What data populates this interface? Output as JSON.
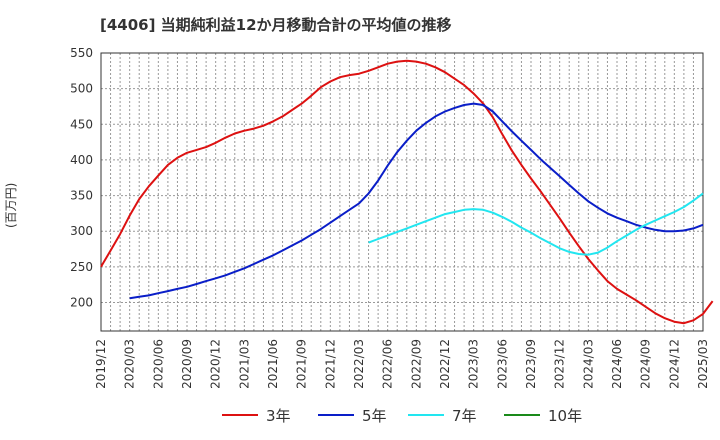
{
  "chart_data": {
    "type": "line",
    "title": "[4406]  当期純利益12か月移動合計の平均値の推移",
    "ylabel": "(百万円)",
    "xlabel": "",
    "ylim": [
      160,
      550
    ],
    "yticks": [
      200,
      250,
      300,
      350,
      400,
      450,
      500,
      550
    ],
    "xrange": [
      "2019-12",
      "2025-03"
    ],
    "xticks": [
      "2019/12",
      "2020/03",
      "2020/06",
      "2020/09",
      "2020/12",
      "2021/03",
      "2021/06",
      "2021/09",
      "2021/12",
      "2022/03",
      "2022/06",
      "2022/09",
      "2022/12",
      "2023/03",
      "2023/06",
      "2023/09",
      "2023/12",
      "2024/03",
      "2024/06",
      "2024/09",
      "2024/12",
      "2025/03"
    ],
    "grid": true,
    "legend_position": "bottom",
    "series": [
      {
        "name": "3年",
        "color": "#dd1111",
        "points": [
          [
            "2019-12",
            250
          ],
          [
            "2020-01",
            273
          ],
          [
            "2020-02",
            296
          ],
          [
            "2020-03",
            322
          ],
          [
            "2020-04",
            345
          ],
          [
            "2020-05",
            363
          ],
          [
            "2020-06",
            378
          ],
          [
            "2020-07",
            393
          ],
          [
            "2020-08",
            403
          ],
          [
            "2020-09",
            410
          ],
          [
            "2020-10",
            414
          ],
          [
            "2020-11",
            418
          ],
          [
            "2020-12",
            424
          ],
          [
            "2021-01",
            431
          ],
          [
            "2021-02",
            437
          ],
          [
            "2021-03",
            441
          ],
          [
            "2021-04",
            444
          ],
          [
            "2021-05",
            448
          ],
          [
            "2021-06",
            454
          ],
          [
            "2021-07",
            461
          ],
          [
            "2021-08",
            470
          ],
          [
            "2021-09",
            479
          ],
          [
            "2021-10",
            490
          ],
          [
            "2021-11",
            502
          ],
          [
            "2021-12",
            510
          ],
          [
            "2022-01",
            516
          ],
          [
            "2022-02",
            519
          ],
          [
            "2022-03",
            521
          ],
          [
            "2022-04",
            525
          ],
          [
            "2022-05",
            530
          ],
          [
            "2022-06",
            535
          ],
          [
            "2022-07",
            538
          ],
          [
            "2022-08",
            539
          ],
          [
            "2022-09",
            538
          ],
          [
            "2022-10",
            535
          ],
          [
            "2022-11",
            530
          ],
          [
            "2022-12",
            523
          ],
          [
            "2023-01",
            514
          ],
          [
            "2023-02",
            505
          ],
          [
            "2023-03",
            493
          ],
          [
            "2023-04",
            479
          ],
          [
            "2023-05",
            460
          ],
          [
            "2023-06",
            436
          ],
          [
            "2023-07",
            413
          ],
          [
            "2023-08",
            393
          ],
          [
            "2023-09",
            374
          ],
          [
            "2023-10",
            356
          ],
          [
            "2023-11",
            337
          ],
          [
            "2023-12",
            318
          ],
          [
            "2024-01",
            298
          ],
          [
            "2024-02",
            279
          ],
          [
            "2024-03",
            261
          ],
          [
            "2024-04",
            245
          ],
          [
            "2024-05",
            230
          ],
          [
            "2024-06",
            219
          ],
          [
            "2024-07",
            211
          ],
          [
            "2024-08",
            203
          ],
          [
            "2024-09",
            194
          ],
          [
            "2024-10",
            185
          ],
          [
            "2024-11",
            178
          ],
          [
            "2024-12",
            173
          ],
          [
            "2025-01",
            171
          ],
          [
            "2025-02",
            175
          ],
          [
            "2025-03",
            184
          ],
          [
            "2025-04",
            202
          ]
        ]
      },
      {
        "name": "5年",
        "color": "#0a1ec8",
        "points": [
          [
            "2020-03",
            206
          ],
          [
            "2020-04",
            208
          ],
          [
            "2020-05",
            210
          ],
          [
            "2020-06",
            213
          ],
          [
            "2020-07",
            216
          ],
          [
            "2020-08",
            219
          ],
          [
            "2020-09",
            222
          ],
          [
            "2020-10",
            226
          ],
          [
            "2020-11",
            230
          ],
          [
            "2020-12",
            234
          ],
          [
            "2021-01",
            238
          ],
          [
            "2021-02",
            243
          ],
          [
            "2021-03",
            248
          ],
          [
            "2021-04",
            254
          ],
          [
            "2021-05",
            260
          ],
          [
            "2021-06",
            266
          ],
          [
            "2021-07",
            273
          ],
          [
            "2021-08",
            280
          ],
          [
            "2021-09",
            287
          ],
          [
            "2021-10",
            295
          ],
          [
            "2021-11",
            303
          ],
          [
            "2021-12",
            312
          ],
          [
            "2022-01",
            321
          ],
          [
            "2022-02",
            330
          ],
          [
            "2022-03",
            339
          ],
          [
            "2022-04",
            353
          ],
          [
            "2022-05",
            371
          ],
          [
            "2022-06",
            392
          ],
          [
            "2022-07",
            411
          ],
          [
            "2022-08",
            427
          ],
          [
            "2022-09",
            441
          ],
          [
            "2022-10",
            452
          ],
          [
            "2022-11",
            461
          ],
          [
            "2022-12",
            468
          ],
          [
            "2023-01",
            473
          ],
          [
            "2023-02",
            477
          ],
          [
            "2023-03",
            479
          ],
          [
            "2023-04",
            477
          ],
          [
            "2023-05",
            468
          ],
          [
            "2023-06",
            454
          ],
          [
            "2023-07",
            440
          ],
          [
            "2023-08",
            427
          ],
          [
            "2023-09",
            414
          ],
          [
            "2023-10",
            401
          ],
          [
            "2023-11",
            389
          ],
          [
            "2023-12",
            377
          ],
          [
            "2024-01",
            365
          ],
          [
            "2024-02",
            353
          ],
          [
            "2024-03",
            342
          ],
          [
            "2024-04",
            333
          ],
          [
            "2024-05",
            325
          ],
          [
            "2024-06",
            319
          ],
          [
            "2024-07",
            314
          ],
          [
            "2024-08",
            309
          ],
          [
            "2024-09",
            305
          ],
          [
            "2024-10",
            302
          ],
          [
            "2024-11",
            300
          ],
          [
            "2024-12",
            300
          ],
          [
            "2025-01",
            301
          ],
          [
            "2025-02",
            304
          ],
          [
            "2025-03",
            309
          ]
        ]
      },
      {
        "name": "7年",
        "color": "#22e6f0",
        "points": [
          [
            "2022-04",
            284
          ],
          [
            "2022-05",
            289
          ],
          [
            "2022-06",
            294
          ],
          [
            "2022-07",
            299
          ],
          [
            "2022-08",
            304
          ],
          [
            "2022-09",
            309
          ],
          [
            "2022-10",
            314
          ],
          [
            "2022-11",
            319
          ],
          [
            "2022-12",
            324
          ],
          [
            "2023-01",
            327
          ],
          [
            "2023-02",
            330
          ],
          [
            "2023-03",
            331
          ],
          [
            "2023-04",
            330
          ],
          [
            "2023-05",
            326
          ],
          [
            "2023-06",
            320
          ],
          [
            "2023-07",
            313
          ],
          [
            "2023-08",
            305
          ],
          [
            "2023-09",
            298
          ],
          [
            "2023-10",
            290
          ],
          [
            "2023-11",
            283
          ],
          [
            "2023-12",
            276
          ],
          [
            "2024-01",
            271
          ],
          [
            "2024-02",
            268
          ],
          [
            "2024-03",
            267
          ],
          [
            "2024-04",
            270
          ],
          [
            "2024-05",
            277
          ],
          [
            "2024-06",
            286
          ],
          [
            "2024-07",
            294
          ],
          [
            "2024-08",
            302
          ],
          [
            "2024-09",
            309
          ],
          [
            "2024-10",
            315
          ],
          [
            "2024-11",
            321
          ],
          [
            "2024-12",
            327
          ],
          [
            "2025-01",
            334
          ],
          [
            "2025-02",
            343
          ],
          [
            "2025-03",
            353
          ]
        ]
      },
      {
        "name": "10年",
        "color": "#1a8a1a",
        "points": []
      }
    ]
  }
}
